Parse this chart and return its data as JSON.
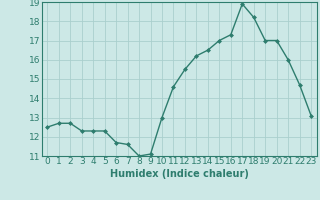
{
  "x": [
    0,
    1,
    2,
    3,
    4,
    5,
    6,
    7,
    8,
    9,
    10,
    11,
    12,
    13,
    14,
    15,
    16,
    17,
    18,
    19,
    20,
    21,
    22,
    23
  ],
  "y": [
    12.5,
    12.7,
    12.7,
    12.3,
    12.3,
    12.3,
    11.7,
    11.6,
    11.0,
    11.1,
    13.0,
    14.6,
    15.5,
    16.2,
    16.5,
    17.0,
    17.3,
    18.9,
    18.2,
    17.0,
    17.0,
    16.0,
    14.7,
    13.1
  ],
  "xlabel": "Humidex (Indice chaleur)",
  "ylim": [
    11,
    19
  ],
  "xlim": [
    -0.5,
    23.5
  ],
  "yticks": [
    11,
    12,
    13,
    14,
    15,
    16,
    17,
    18,
    19
  ],
  "xticks": [
    0,
    1,
    2,
    3,
    4,
    5,
    6,
    7,
    8,
    9,
    10,
    11,
    12,
    13,
    14,
    15,
    16,
    17,
    18,
    19,
    20,
    21,
    22,
    23
  ],
  "line_color": "#2e7d6e",
  "marker_color": "#2e7d6e",
  "bg_color": "#cce8e6",
  "grid_color": "#aacfcd",
  "xlabel_fontsize": 7,
  "tick_fontsize": 6.5,
  "marker": "D",
  "markersize": 2,
  "linewidth": 1.0
}
